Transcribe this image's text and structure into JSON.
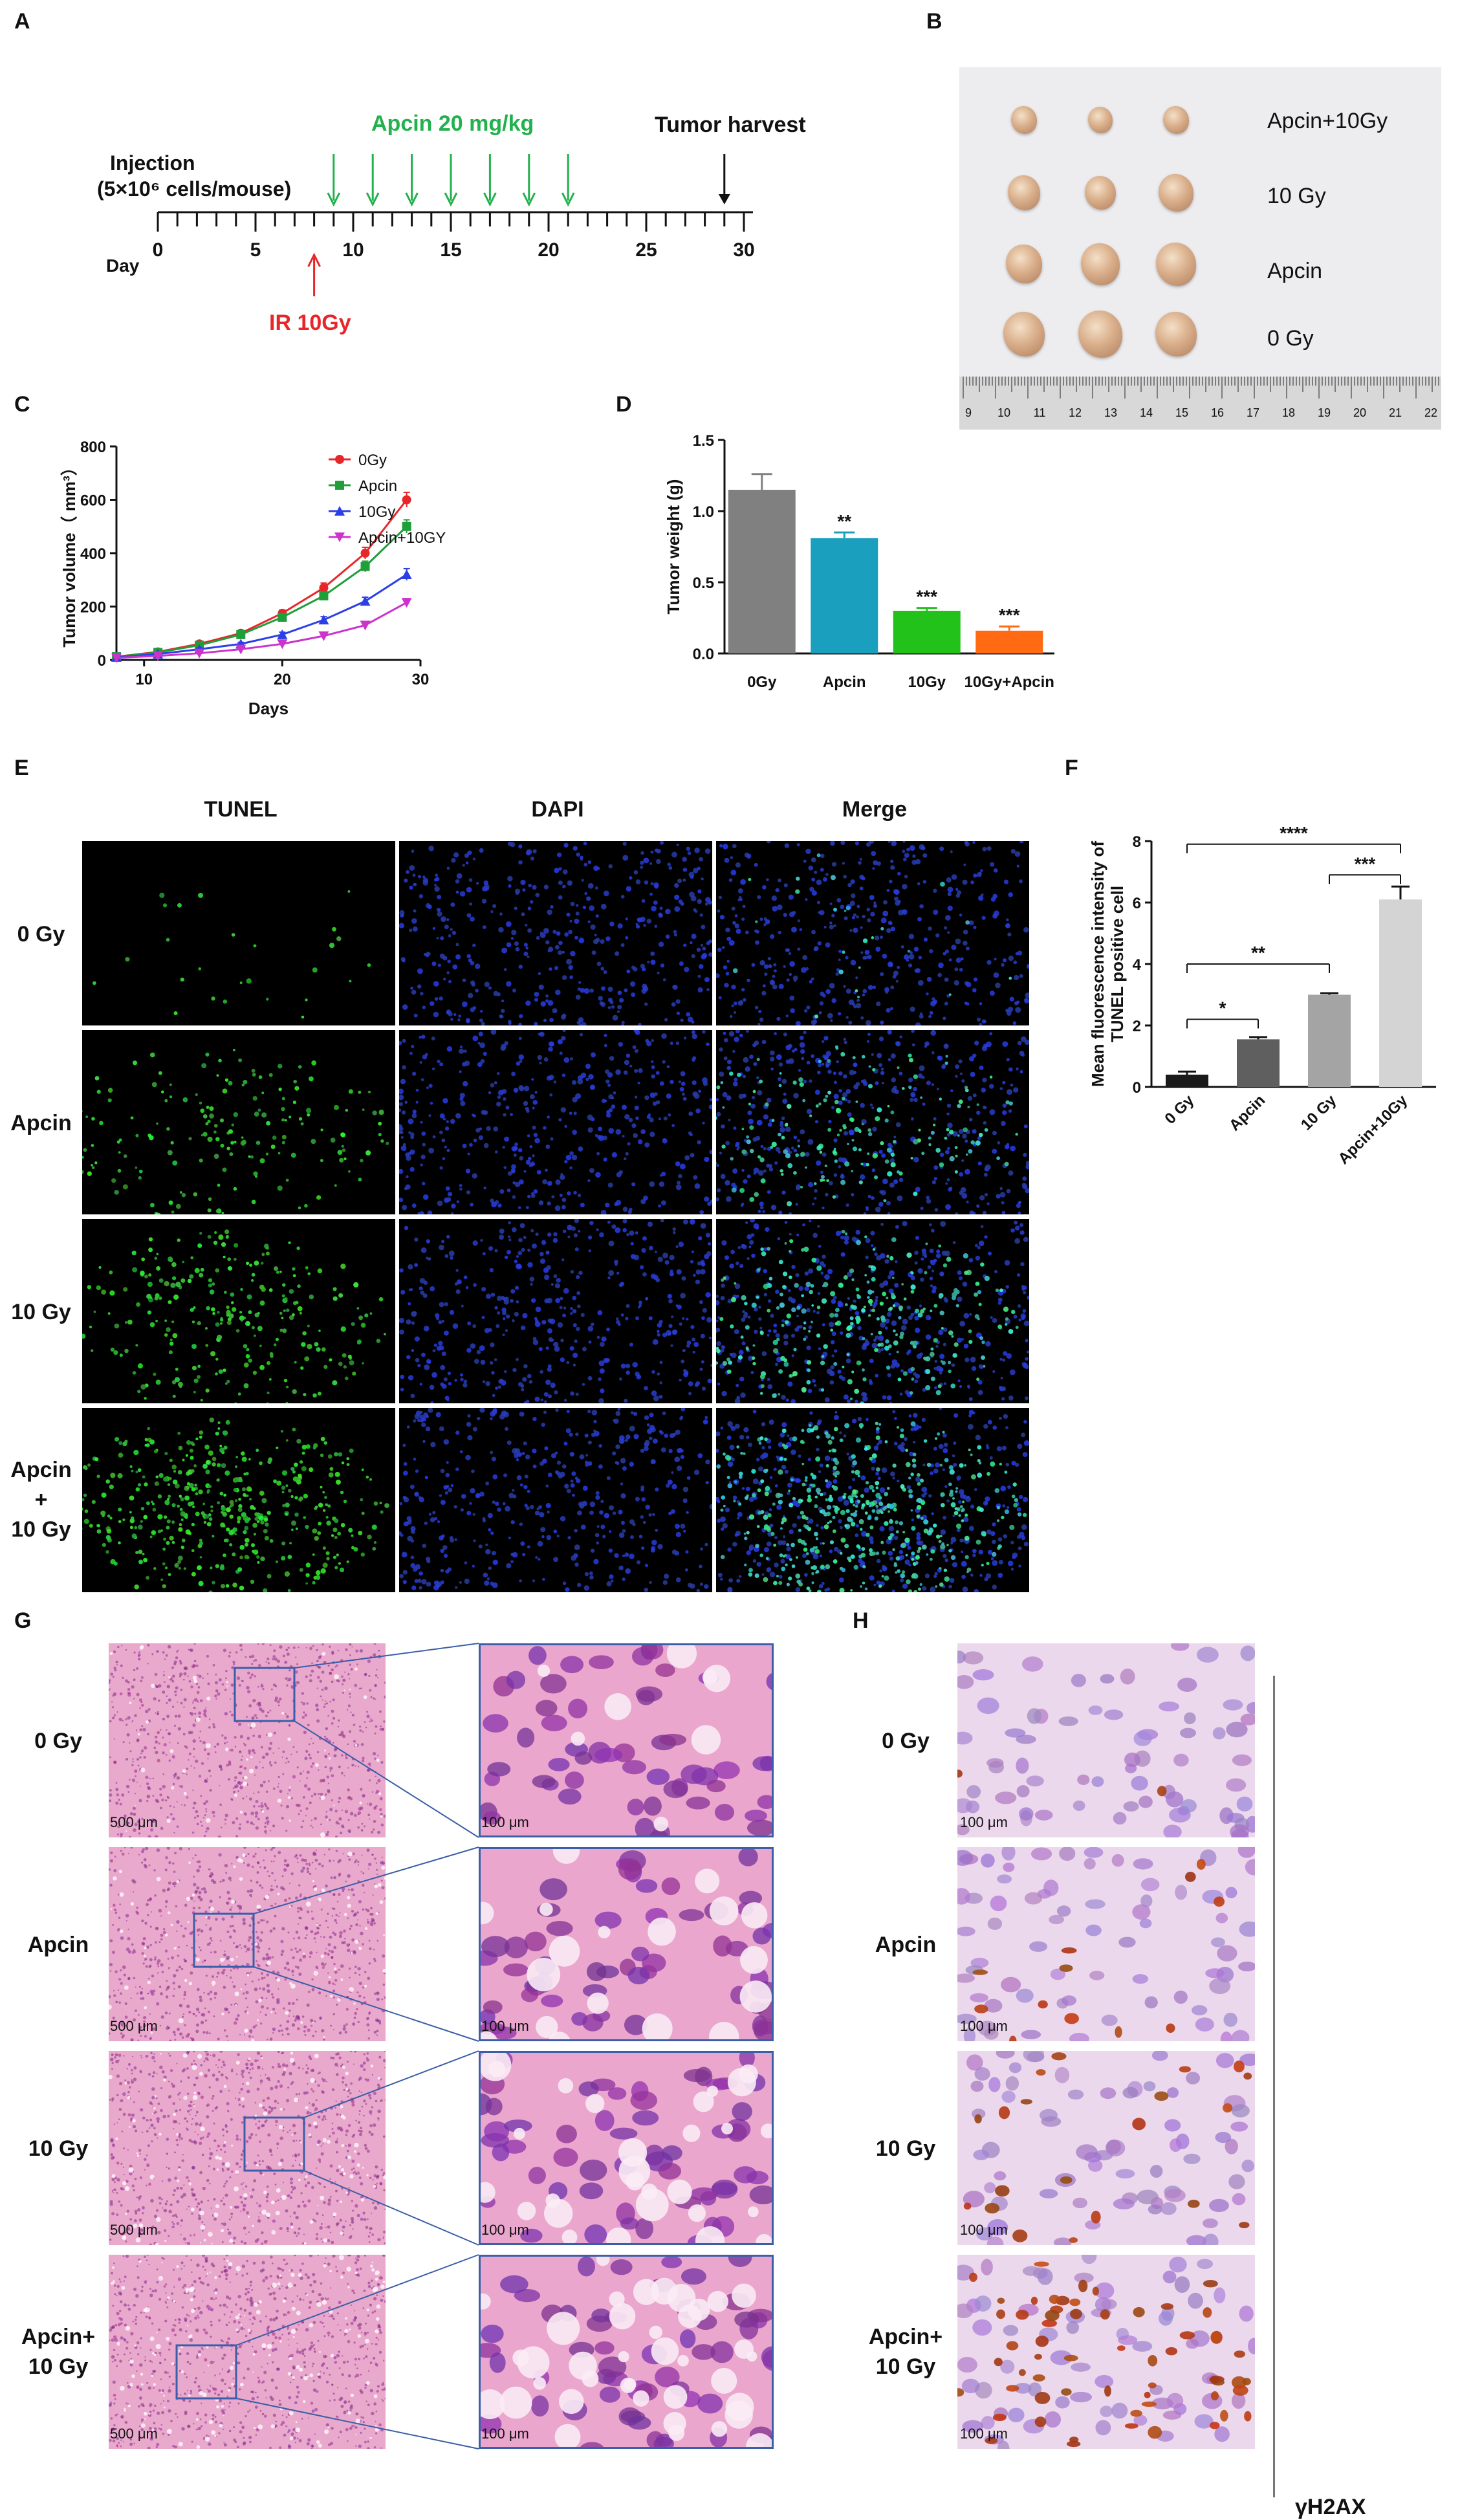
{
  "panels": {
    "A": "A",
    "B": "B",
    "C": "C",
    "D": "D",
    "E": "E",
    "F": "F",
    "G": "G",
    "H": "H"
  },
  "panelA": {
    "apcin_label": "Apcin 20 mg/kg",
    "harvest_label": "Tumor harvest",
    "injection_line1": "Injection",
    "injection_line2": "(5×10⁶ cells/mouse)",
    "day_prefix": "Day",
    "ticks": [
      "0",
      "5",
      "10",
      "15",
      "20",
      "25",
      "30"
    ],
    "ir_label": "IR 10Gy",
    "colors": {
      "apcin": "#22b14c",
      "ir": "#e8262a"
    }
  },
  "panelB": {
    "labels": [
      "Apcin+10Gy",
      "10 Gy",
      "Apcin",
      "0 Gy"
    ],
    "ruler_numbers": [
      "9",
      "10",
      "11",
      "12",
      "13",
      "14",
      "15",
      "16",
      "17",
      "18",
      "19",
      "20",
      "21",
      "22"
    ]
  },
  "chart_data": [
    {
      "type": "line",
      "xlabel": "Days",
      "ylabel": "Tumor volume（ mm³）",
      "xlim": [
        8,
        30
      ],
      "ylim": [
        0,
        800
      ],
      "xticks": [
        "10",
        "20",
        "30"
      ],
      "yticks": [
        "0",
        "200",
        "400",
        "600",
        "800"
      ],
      "legend_position": "top-right",
      "x": [
        8,
        11,
        14,
        17,
        20,
        23,
        26,
        29
      ],
      "series": [
        {
          "name": "0Gy",
          "color": "#e8262a",
          "marker": "circle",
          "values": [
            12,
            30,
            60,
            100,
            175,
            270,
            400,
            600
          ],
          "error": [
            4,
            5,
            8,
            10,
            12,
            18,
            22,
            28
          ]
        },
        {
          "name": "Apcin",
          "color": "#1f9e3a",
          "marker": "square",
          "values": [
            12,
            28,
            55,
            95,
            160,
            240,
            350,
            500
          ],
          "error": [
            4,
            5,
            7,
            9,
            12,
            15,
            20,
            25
          ]
        },
        {
          "name": "10Gy",
          "color": "#2c3fe6",
          "marker": "triangle",
          "values": [
            10,
            22,
            40,
            60,
            95,
            150,
            220,
            320
          ],
          "error": [
            3,
            4,
            5,
            6,
            9,
            12,
            15,
            22
          ]
        },
        {
          "name": "Apcin+10GY",
          "color": "#cc33cc",
          "marker": "triangle-down",
          "values": [
            8,
            15,
            25,
            40,
            60,
            90,
            130,
            215
          ],
          "error": [
            2,
            3,
            4,
            5,
            6,
            8,
            10,
            15
          ]
        }
      ]
    },
    {
      "type": "bar",
      "ylabel": "Tumor weight (g)",
      "ylim": [
        0,
        1.5
      ],
      "yticks": [
        "0.0",
        "0.5",
        "1.0",
        "1.5"
      ],
      "categories": [
        "0Gy",
        "Apcin",
        "10Gy",
        "10Gy+Apcin"
      ],
      "values": [
        1.15,
        0.81,
        0.3,
        0.16
      ],
      "errors": [
        0.11,
        0.04,
        0.02,
        0.03
      ],
      "significance": [
        "",
        "**",
        "***",
        "***"
      ],
      "colors": [
        "#808080",
        "#1b9fbf",
        "#22c21a",
        "#ff6a13"
      ]
    },
    {
      "type": "bar",
      "ylabel": "Mean fluorescence intensity of TUNEL positive cell",
      "ylim": [
        0,
        8
      ],
      "yticks": [
        "0",
        "2",
        "4",
        "6",
        "8"
      ],
      "categories": [
        "0 Gy",
        "Apcin",
        "10 Gy",
        "Apcin+10Gy"
      ],
      "values": [
        0.4,
        1.55,
        3.0,
        6.1
      ],
      "errors": [
        0.1,
        0.07,
        0.05,
        0.42
      ],
      "colors": [
        "#1a1a1a",
        "#5f5f5f",
        "#a4a4a4",
        "#d4d4d4"
      ],
      "brackets": [
        {
          "label": "*",
          "from": 0,
          "to": 1
        },
        {
          "label": "**",
          "from": 0,
          "to": 2
        },
        {
          "label": "***",
          "from": 2,
          "to": 3
        },
        {
          "label": "****",
          "from": 0,
          "to": 3
        }
      ]
    }
  ],
  "panelE": {
    "columns": [
      "TUNEL",
      "DAPI",
      "Merge"
    ],
    "rows": [
      "0 Gy",
      "Apcin",
      "10 Gy",
      "Apcin\n+\n10 Gy"
    ],
    "density": [
      0.05,
      0.35,
      0.55,
      0.9
    ]
  },
  "panelG": {
    "rows": [
      "0 Gy",
      "Apcin",
      "10 Gy",
      "Apcin+\n10 Gy"
    ],
    "scale_low": "500 μm",
    "scale_high": "100 μm"
  },
  "panelH": {
    "rows": [
      "0 Gy",
      "Apcin",
      "10 Gy",
      "Apcin+\n10 Gy"
    ],
    "scale": "100 μm",
    "marker": "γH2AX"
  }
}
